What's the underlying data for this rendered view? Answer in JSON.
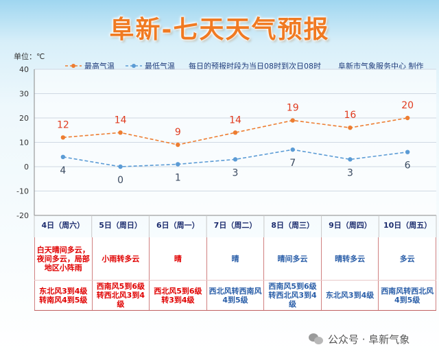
{
  "title": "阜新-七天天气预报",
  "chart_data": {
    "type": "line",
    "unit_label": "单位：℃",
    "ylim": [
      -20,
      40
    ],
    "yticks": [
      40,
      30,
      20,
      10,
      0,
      -10,
      -20
    ],
    "categories": [
      "4日（周六）",
      "5日（周日）",
      "6日（周一）",
      "7日（周二）",
      "8日（周三）",
      "9日（周四）",
      "10日（周五）"
    ],
    "series": [
      {
        "name": "最高气温",
        "color": "#ed7d31",
        "values": [
          12,
          14,
          9,
          14,
          19,
          16,
          20
        ]
      },
      {
        "name": "最低气温",
        "color": "#5b9bd5",
        "values": [
          4,
          0,
          1,
          3,
          7,
          3,
          6
        ]
      }
    ],
    "note": "每日的预报时段为当日08时到次日08时",
    "source": "阜新市气象服务中心 制作"
  },
  "weather": [
    {
      "text": "白天晴间多云，夜间多云，局部地区小阵雨",
      "color": "red"
    },
    {
      "text": "小雨转多云",
      "color": "red"
    },
    {
      "text": "晴",
      "color": "red"
    },
    {
      "text": "晴",
      "color": "blue"
    },
    {
      "text": "晴间多云",
      "color": "blue"
    },
    {
      "text": "晴转多云",
      "color": "blue"
    },
    {
      "text": "多云",
      "color": "blue"
    }
  ],
  "wind": [
    {
      "text": "东北风3到4级转南风4到5级",
      "color": "red"
    },
    {
      "text": "西南风5到6级转西北风3到4级",
      "color": "red"
    },
    {
      "text": "西北风5到6级转3到4级",
      "color": "red"
    },
    {
      "text": "西北风转西南风4到5级",
      "color": "blue"
    },
    {
      "text": "西南风5到6级转西北风3到4级",
      "color": "blue"
    },
    {
      "text": "东北风3到4级",
      "color": "blue"
    },
    {
      "text": "西南风转西北风4到5级",
      "color": "blue"
    }
  ],
  "watermark": "公众号 · 阜新气象"
}
